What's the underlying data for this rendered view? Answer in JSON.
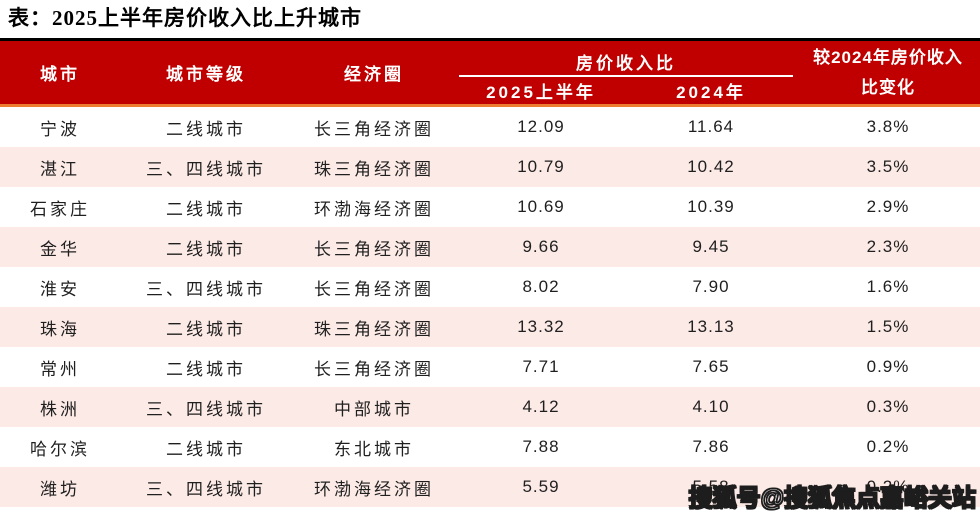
{
  "theme": {
    "header_bg": "#C00000",
    "header_text": "#FFFFFF",
    "top_line": "#000000",
    "accent_line": "#ED7D31",
    "row_alt_bg": "#FCEAE6",
    "body_text": "#1F1F1F"
  },
  "header": {
    "city": "城市",
    "tier": "城市等级",
    "region": "经济圈",
    "ratio_group": "房价收入比",
    "h2025": "2025上半年",
    "h2024": "2024年",
    "change": "较2024年房价收入\n比变化"
  },
  "watermark": {
    "text": "搜狐号@搜狐焦点嘉峪关站"
  },
  "chart_data": {
    "type": "table",
    "title": "表：2025上半年房价收入比上升城市",
    "columns": [
      "城市",
      "城市等级",
      "经济圈",
      "房价收入比 2025上半年",
      "房价收入比 2024年",
      "较2024年房价收入比变化"
    ],
    "rows": [
      [
        "宁波",
        "二线城市",
        "长三角经济圈",
        "12.09",
        "11.64",
        "3.8%"
      ],
      [
        "湛江",
        "三、四线城市",
        "珠三角经济圈",
        "10.79",
        "10.42",
        "3.5%"
      ],
      [
        "石家庄",
        "二线城市",
        "环渤海经济圈",
        "10.69",
        "10.39",
        "2.9%"
      ],
      [
        "金华",
        "二线城市",
        "长三角经济圈",
        "9.66",
        "9.45",
        "2.3%"
      ],
      [
        "淮安",
        "三、四线城市",
        "长三角经济圈",
        "8.02",
        "7.90",
        "1.6%"
      ],
      [
        "珠海",
        "二线城市",
        "珠三角经济圈",
        "13.32",
        "13.13",
        "1.5%"
      ],
      [
        "常州",
        "二线城市",
        "长三角经济圈",
        "7.71",
        "7.65",
        "0.9%"
      ],
      [
        "株洲",
        "三、四线城市",
        "中部城市",
        "4.12",
        "4.10",
        "0.3%"
      ],
      [
        "哈尔滨",
        "二线城市",
        "东北城市",
        "7.88",
        "7.86",
        "0.2%"
      ],
      [
        "潍坊",
        "三、四线城市",
        "环渤海经济圈",
        "5.59",
        "5.58",
        "0.2%"
      ]
    ]
  }
}
